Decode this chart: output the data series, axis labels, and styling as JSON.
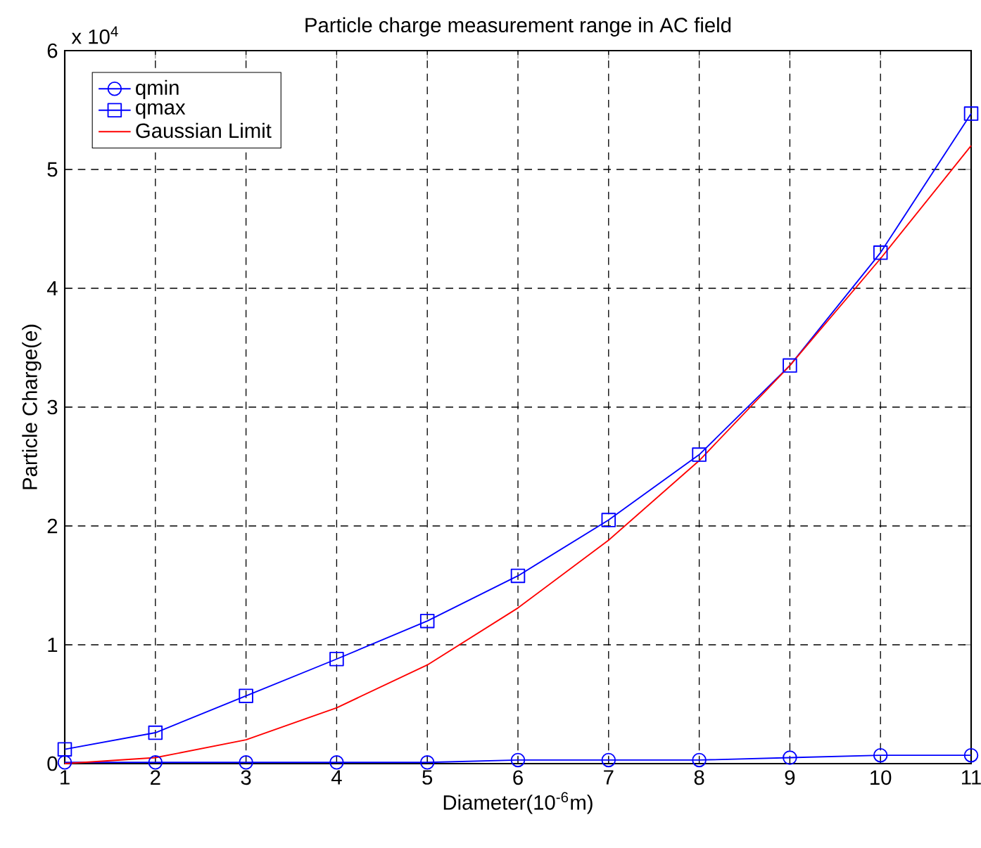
{
  "chart_data": {
    "type": "line",
    "title": "Particle charge measurement range in AC field",
    "xlabel": "Diameter(10$^{-6}$m)",
    "ylabel": "Particle Charge(e)",
    "annotations": [
      "x 10$^{4}$"
    ],
    "x": [
      1,
      2,
      3,
      4,
      5,
      6,
      7,
      8,
      9,
      10,
      11
    ],
    "series": [
      {
        "name": "qmin",
        "color": "#0000ff",
        "marker": "circle",
        "values": [
          0.01,
          0.01,
          0.01,
          0.01,
          0.01,
          0.03,
          0.03,
          0.03,
          0.05,
          0.07,
          0.07
        ]
      },
      {
        "name": "qmax",
        "color": "#0000ff",
        "marker": "square",
        "values": [
          0.12,
          0.26,
          0.57,
          0.88,
          1.2,
          1.58,
          2.05,
          2.6,
          3.35,
          4.3,
          5.47
        ]
      },
      {
        "name": "Gaussian Limit",
        "color": "#ff0000",
        "marker": "none",
        "values": [
          0.0,
          0.05,
          0.2,
          0.47,
          0.83,
          1.31,
          1.88,
          2.55,
          3.35,
          4.25,
          5.2
        ]
      }
    ],
    "xlim": [
      1,
      11
    ],
    "ylim": [
      0,
      6
    ],
    "xticks": [
      1,
      2,
      3,
      4,
      5,
      6,
      7,
      8,
      9,
      10,
      11
    ],
    "yticks": [
      0,
      1,
      2,
      3,
      4,
      5,
      6
    ],
    "grid": true,
    "legend": "top left",
    "line_style": "solid"
  }
}
